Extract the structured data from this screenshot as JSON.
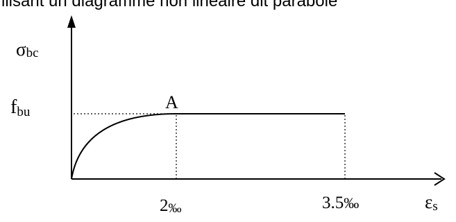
{
  "caption": "ilisant un diagramme non linéaire dit parabole",
  "diagram": {
    "y_axis": {
      "symbol": "σ",
      "subscript": "bc"
    },
    "x_axis": {
      "symbol": "ε",
      "subscript": "s"
    },
    "y_value": {
      "symbol": "f",
      "subscript": "bu"
    },
    "point_label": "A",
    "tick_2": {
      "value": "2",
      "unit": "‰"
    },
    "tick_35": {
      "value": "3.5",
      "unit": "‰"
    },
    "curve": "parabola then constant plateau",
    "parabola_end_strain_permille": 2,
    "max_strain_permille": 3.5
  }
}
